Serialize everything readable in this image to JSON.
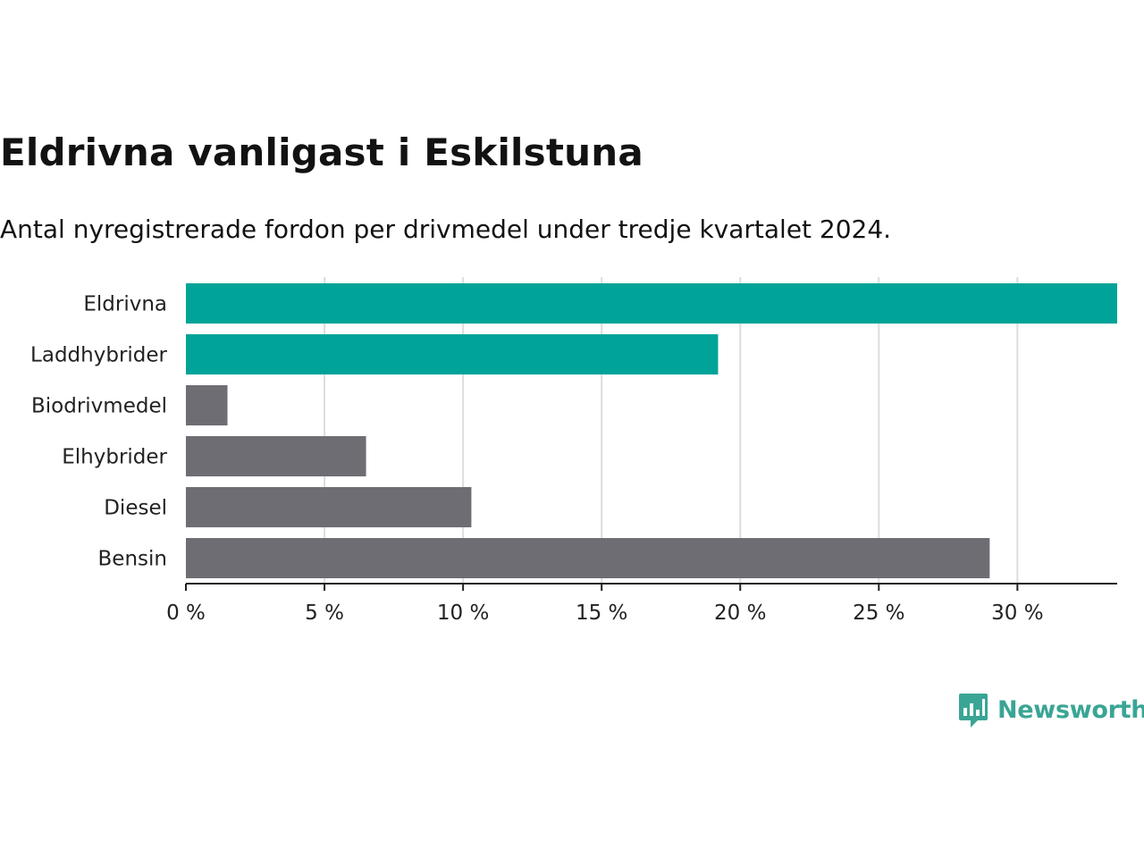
{
  "title": "Eldrivna vanligast i Eskilstuna",
  "subtitle": "Antal nyregistrerade fordon per drivmedel under tredje kvartalet 2024.",
  "brand": {
    "name": "Newsworthy",
    "color": "#3aa595",
    "logo_icon": "newsworthy-logo-icon"
  },
  "chart_data": {
    "type": "bar",
    "orientation": "horizontal",
    "categories": [
      "Eldrivna",
      "Laddhybrider",
      "Biodrivmedel",
      "Elhybrider",
      "Diesel",
      "Bensin"
    ],
    "values": [
      33.6,
      19.2,
      1.5,
      6.5,
      10.3,
      29.0
    ],
    "colors": [
      "#00a398",
      "#00a398",
      "#6e6d74",
      "#6e6d74",
      "#6e6d74",
      "#6e6d74"
    ],
    "xlim": [
      0,
      33.6
    ],
    "xticks": [
      0,
      5,
      10,
      15,
      20,
      25,
      30
    ],
    "xtick_labels": [
      "0 %",
      "5 %",
      "10 %",
      "15 %",
      "20 %",
      "25 %",
      "30 %"
    ],
    "grid": true,
    "grid_color": "#dddddd",
    "xlabel": "",
    "ylabel": "",
    "legend": "none"
  }
}
